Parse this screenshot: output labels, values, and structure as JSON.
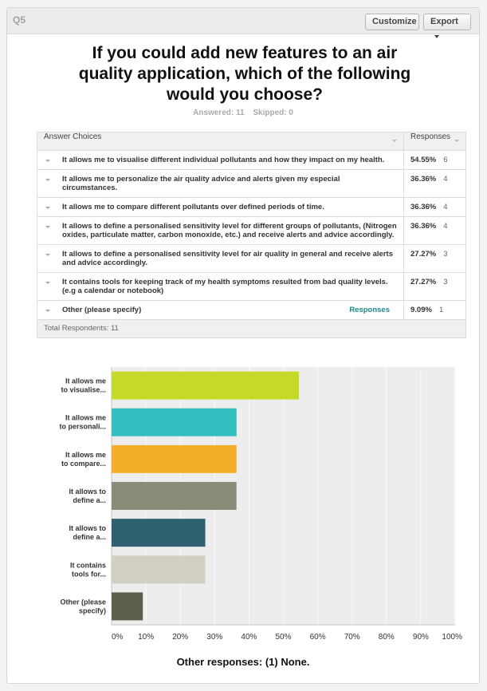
{
  "header": {
    "question_number": "Q5",
    "customize_label": "Customize",
    "export_label": "Export"
  },
  "question": {
    "title_lines": [
      "If you could add new features to an air",
      "quality application, which of the following",
      "would you choose?"
    ],
    "answered_text": "Answered: 11",
    "skipped_text": "Skipped: 0"
  },
  "table": {
    "col_choices": "Answer Choices",
    "col_responses": "Responses",
    "responses_link": "Responses",
    "rows": [
      {
        "choice": "It allows me to visualise different individual pollutants and how they impact on my health.",
        "pct": "54.55%",
        "count": "6"
      },
      {
        "choice": "It allows me to personalize the air quality advice and alerts given my especial circumstances.",
        "pct": "36.36%",
        "count": "4"
      },
      {
        "choice": "It allows me to compare different pollutants over defined periods of time.",
        "pct": "36.36%",
        "count": "4"
      },
      {
        "choice": "It allows to define a personalised sensitivity level for different groups of pollutants, (Nitrogen oxides, particulate matter, carbon monoxide, etc.) and receive alerts and advice accordingly.",
        "pct": "36.36%",
        "count": "4"
      },
      {
        "choice": "It allows to define a personalised sensitivity level for air quality in general and receive alerts and advice accordingly.",
        "pct": "27.27%",
        "count": "3"
      },
      {
        "choice": "It contains tools for keeping track of my health symptoms resulted from bad quality levels. (e.g a calendar or notebook)",
        "pct": "27.27%",
        "count": "3"
      },
      {
        "choice": "Other (please specify)",
        "pct": "9.09%",
        "count": "1"
      }
    ],
    "total_respondents": "Total Respondents: 11"
  },
  "chart_data": {
    "type": "bar",
    "orientation": "horizontal",
    "categories": [
      [
        "It allows me",
        "to visualise..."
      ],
      [
        "It allows me",
        "to personali..."
      ],
      [
        "It allows me",
        "to compare..."
      ],
      [
        "It allows to",
        "define a..."
      ],
      [
        "It allows to",
        "define a..."
      ],
      [
        "It contains",
        "tools for..."
      ],
      [
        "Other (please",
        "specify)"
      ]
    ],
    "values": [
      54.55,
      36.36,
      36.36,
      36.36,
      27.27,
      27.27,
      9.09
    ],
    "colors": [
      "#c5d928",
      "#33bfbf",
      "#f5ae2a",
      "#8b8b7a",
      "#2f6170",
      "#d1d0c3",
      "#5e5e4c"
    ],
    "xlim": [
      0,
      100
    ],
    "ticks": [
      "0%",
      "10%",
      "20%",
      "30%",
      "40%",
      "50%",
      "60%",
      "70%",
      "80%",
      "90%",
      "100%"
    ],
    "grid": true
  },
  "other_responses": "Other responses: (1) None."
}
